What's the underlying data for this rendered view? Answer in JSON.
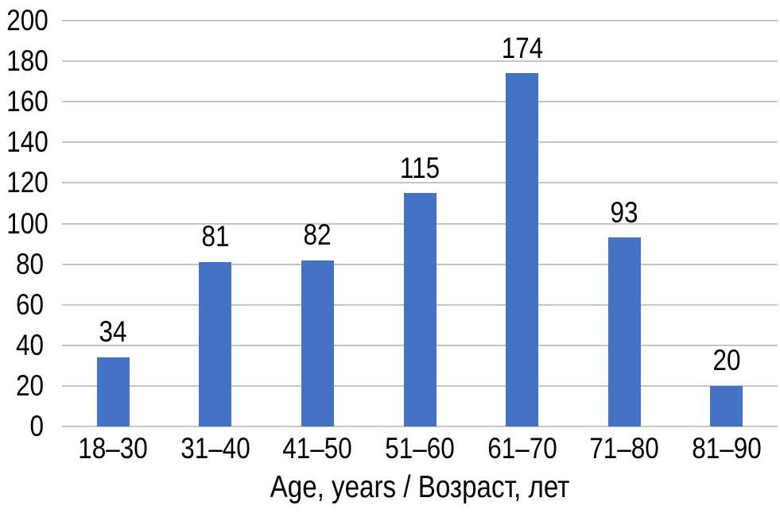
{
  "chart_data": {
    "type": "bar",
    "title": "",
    "xlabel": "Age, years / Возраст, лет",
    "ylabel": "",
    "categories": [
      "18–30",
      "31–40",
      "41–50",
      "51–60",
      "61–70",
      "71–80",
      "81–90"
    ],
    "values": [
      34,
      81,
      82,
      115,
      174,
      93,
      20
    ],
    "ylim": [
      0,
      200
    ],
    "ytick_step": 20,
    "grid": true,
    "legend": "none",
    "colors": {
      "bar": "#4472C4",
      "gridline": "#C6C6C6",
      "text": "#000000",
      "background": "#FFFFFF"
    }
  }
}
